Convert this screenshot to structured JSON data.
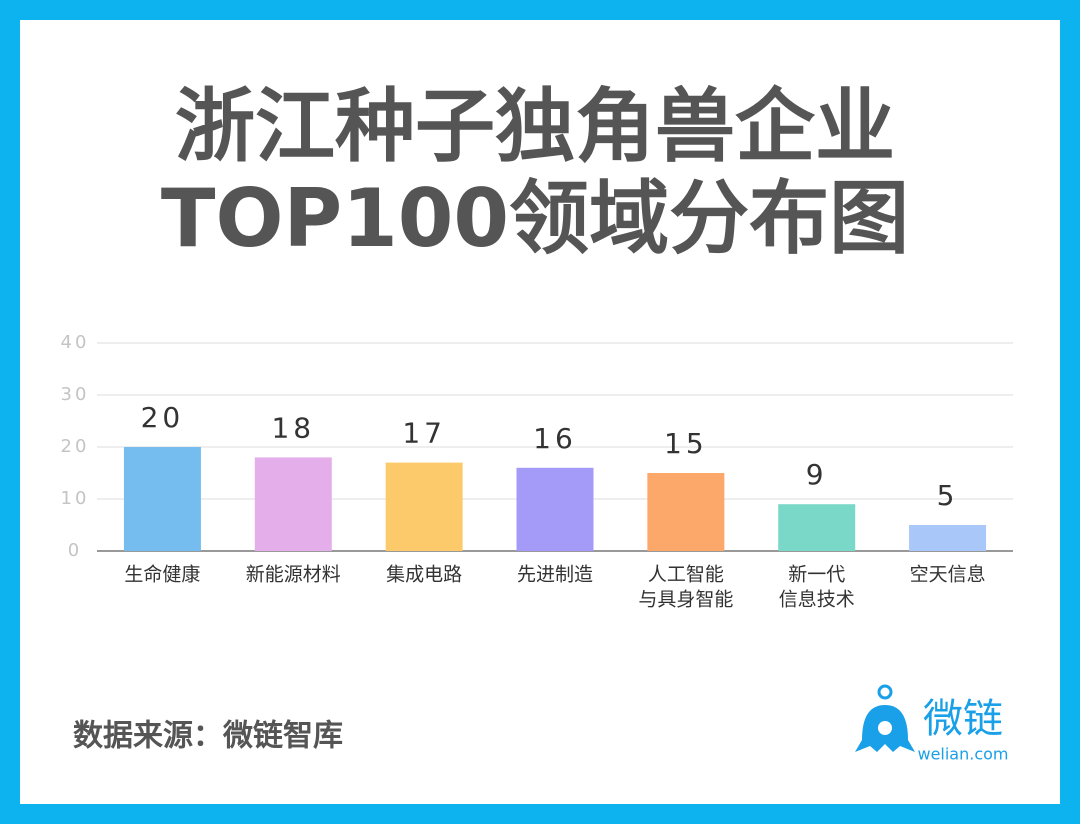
{
  "chart_data": {
    "type": "bar",
    "title": [
      "浙江种子独角兽企业",
      "TOP100领域分布图"
    ],
    "categories": [
      [
        "生命健康"
      ],
      [
        "新能源材料"
      ],
      [
        "集成电路"
      ],
      [
        "先进制造"
      ],
      [
        "人工智能",
        "与具身智能"
      ],
      [
        "新一代",
        "信息技术"
      ],
      [
        "空天信息"
      ]
    ],
    "values": [
      20,
      18,
      17,
      16,
      15,
      9,
      5
    ],
    "colors": [
      "#75bdee",
      "#e4aeea",
      "#fdca6b",
      "#a49bf9",
      "#fda86b",
      "#79d8c8",
      "#a9c8f9"
    ],
    "ylim": [
      0,
      40
    ],
    "yticks": [
      0,
      10,
      20,
      30,
      40
    ],
    "grid": true,
    "source": "数据来源：微链智库"
  },
  "logo": {
    "text": "微链",
    "url": "welian.com"
  }
}
